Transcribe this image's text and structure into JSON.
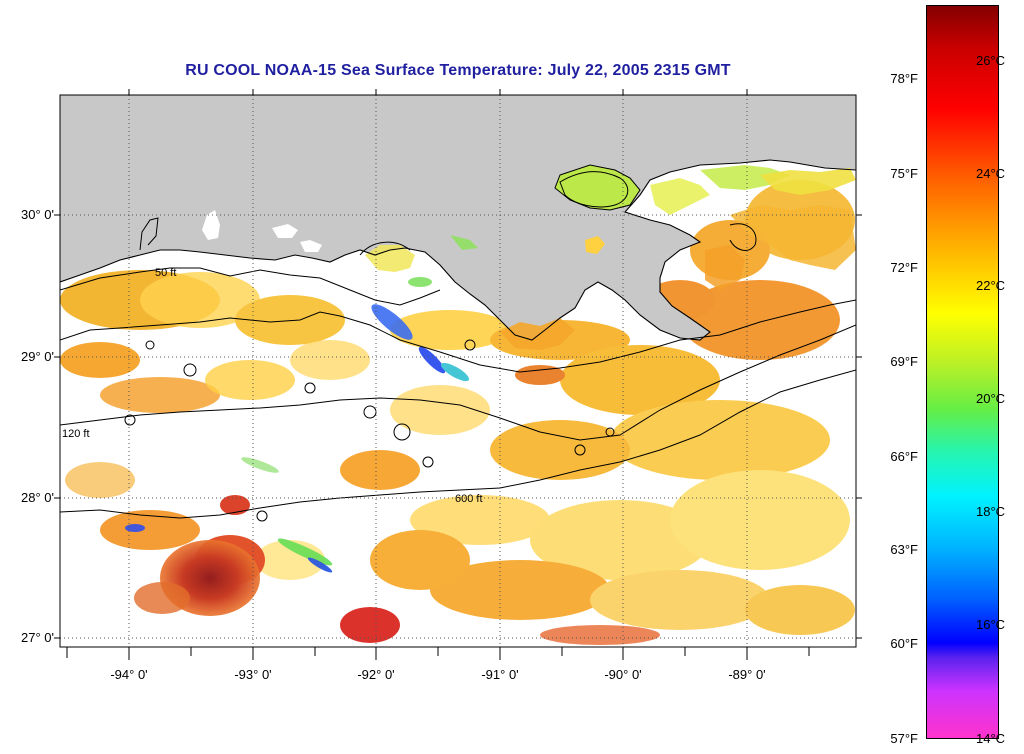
{
  "map": {
    "title": "RU COOL  NOAA-15  Sea Surface Temperature:  July 22, 2005 2315 GMT",
    "latitude_ticks": [
      "30° 0'",
      "29° 0'",
      "28° 0'",
      "27° 0'"
    ],
    "longitude_ticks": [
      "-94° 0'",
      "-93° 0'",
      "-92° 0'",
      "-91° 0'",
      "-90° 0'",
      "-89° 0'"
    ],
    "contour_labels": [
      "50 ft",
      "120 ft",
      "600 ft"
    ],
    "colors": {
      "land": "#c8c8c8",
      "contour": "#000000",
      "title": "#1f1fa0",
      "cloud": "#ffffff"
    }
  },
  "colorbar": {
    "fahrenheit_labels": [
      "78°F",
      "75°F",
      "72°F",
      "69°F",
      "66°F",
      "63°F",
      "60°F",
      "57°F"
    ],
    "celsius_labels": [
      "26°C",
      "24°C",
      "22°C",
      "20°C",
      "18°C",
      "16°C",
      "14°C"
    ]
  }
}
